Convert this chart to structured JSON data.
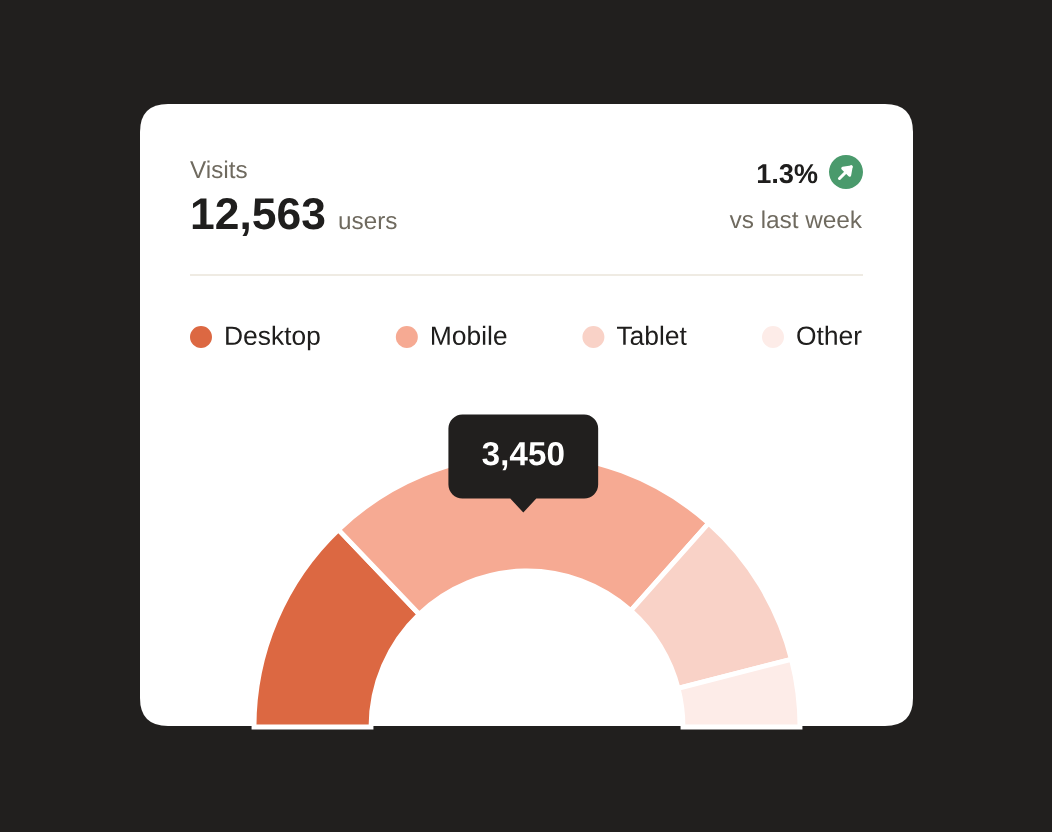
{
  "chart_data": {
    "type": "donut",
    "title": "Visits",
    "annotations": [
      "12,563",
      "users",
      "1.3%",
      "vs last week"
    ],
    "categories": [
      "Desktop",
      "Mobile",
      "Tablet",
      "Other"
    ],
    "values": [
      1870,
      3450,
      1370,
      580
    ],
    "colors": [
      "#dc6842",
      "#f6aa93",
      "#f9d2c7",
      "#fdece8"
    ],
    "value_labels": [
      null,
      "3,450",
      null,
      null
    ],
    "legend": "top"
  }
}
